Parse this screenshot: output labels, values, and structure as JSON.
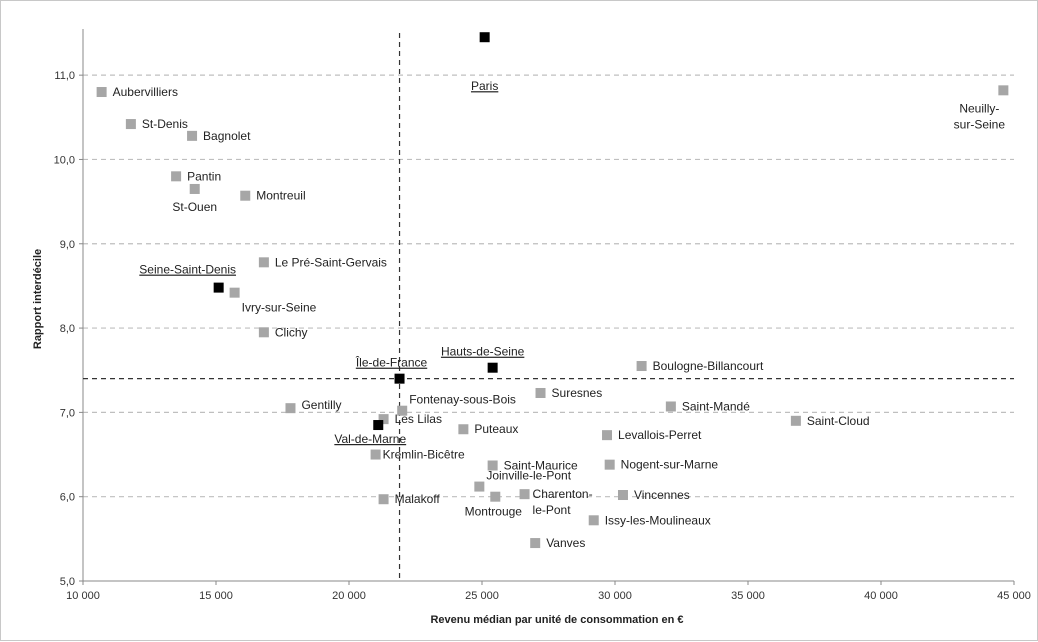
{
  "chart_data": {
    "type": "scatter",
    "xlabel": "Revenu médian par unité de consommation en €",
    "ylabel": "Rapport interdécile",
    "xlim": [
      10000,
      45000
    ],
    "ylim": [
      5.0,
      11.5
    ],
    "x_ticks": [
      "10 000",
      "15 000",
      "20 000",
      "25 000",
      "30 000",
      "35 000",
      "40 000",
      "45 000"
    ],
    "y_ticks": [
      "5,0",
      "6,0",
      "7,0",
      "8,0",
      "9,0",
      "10,0",
      "11,0"
    ],
    "x_tick_values": [
      10000,
      15000,
      20000,
      25000,
      30000,
      35000,
      40000,
      45000
    ],
    "y_tick_values": [
      5,
      6,
      7,
      8,
      9,
      10,
      11
    ],
    "grid": "horizontal dashed",
    "reference_lines": {
      "x": 21900,
      "y": 7.4
    },
    "colors": {
      "commune": "#a6a6a6",
      "aggregate": "#000000",
      "grid": "#bfbfbf",
      "ref_line": "#333333"
    },
    "series": [
      {
        "kind": "commune",
        "points": [
          {
            "label": "Aubervilliers",
            "x": 10700,
            "y": 10.8,
            "anchor": "right"
          },
          {
            "label": "St-Denis",
            "x": 11800,
            "y": 10.42,
            "anchor": "right"
          },
          {
            "label": "Bagnolet",
            "x": 14100,
            "y": 10.28,
            "anchor": "right"
          },
          {
            "label": "Pantin",
            "x": 13500,
            "y": 9.8,
            "anchor": "right"
          },
          {
            "label": "St-Ouen",
            "x": 14200,
            "y": 9.65,
            "anchor": "below"
          },
          {
            "label": "Montreuil",
            "x": 16100,
            "y": 9.57,
            "anchor": "right"
          },
          {
            "label": "Le Pré-Saint-Gervais",
            "x": 16800,
            "y": 8.78,
            "anchor": "right"
          },
          {
            "label": "Ivry-sur-Seine",
            "x": 15700,
            "y": 8.42,
            "anchor": "below-right"
          },
          {
            "label": "Clichy",
            "x": 16800,
            "y": 7.95,
            "anchor": "right"
          },
          {
            "label": "Boulogne-Billancourt",
            "x": 31000,
            "y": 7.55,
            "anchor": "right"
          },
          {
            "label": "Suresnes",
            "x": 27200,
            "y": 7.23,
            "anchor": "right"
          },
          {
            "label": "Fontenay-sous-Bois",
            "x": 22000,
            "y": 7.02,
            "anchor": "above-right"
          },
          {
            "label": "Gentilly",
            "x": 17800,
            "y": 7.05,
            "anchor": "right-up"
          },
          {
            "label": "Les Lilas",
            "x": 21300,
            "y": 6.92,
            "anchor": "right"
          },
          {
            "label": "Saint-Mandé",
            "x": 32100,
            "y": 7.07,
            "anchor": "right"
          },
          {
            "label": "Saint-Cloud",
            "x": 36800,
            "y": 6.9,
            "anchor": "right"
          },
          {
            "label": "Puteaux",
            "x": 24300,
            "y": 6.8,
            "anchor": "right"
          },
          {
            "label": "Levallois-Perret",
            "x": 29700,
            "y": 6.73,
            "anchor": "right"
          },
          {
            "label": "Kremlin-Bicêtre",
            "x": 21000,
            "y": 6.5,
            "anchor": "right"
          },
          {
            "label": "Saint-Maurice",
            "x": 25400,
            "y": 6.37,
            "anchor": "right"
          },
          {
            "label": "Nogent-sur-Marne",
            "x": 29800,
            "y": 6.38,
            "anchor": "right"
          },
          {
            "label": "Joinville-le-Pont",
            "x": 24900,
            "y": 6.12,
            "anchor": "above-right"
          },
          {
            "label": "Montrouge",
            "x": 25500,
            "y": 6.0,
            "anchor": "below-left"
          },
          {
            "label": "Charenton-\nle-Pont",
            "x": 26600,
            "y": 6.03,
            "anchor": "right-stack"
          },
          {
            "label": "Vincennes",
            "x": 30300,
            "y": 6.02,
            "anchor": "right"
          },
          {
            "label": "Malakoff",
            "x": 21300,
            "y": 5.97,
            "anchor": "right"
          },
          {
            "label": "Issy-les-Moulineaux",
            "x": 29200,
            "y": 5.72,
            "anchor": "right"
          },
          {
            "label": "Vanves",
            "x": 27000,
            "y": 5.45,
            "anchor": "right"
          },
          {
            "label": "Neuilly-\nsur-Seine",
            "x": 44600,
            "y": 10.82,
            "anchor": "below-left-stack"
          }
        ]
      },
      {
        "kind": "aggregate",
        "points": [
          {
            "label": "Paris",
            "x": 25100,
            "y": 11.45,
            "anchor": "below"
          },
          {
            "label": "Seine-Saint-Denis",
            "x": 15100,
            "y": 8.48,
            "anchor": "above-left"
          },
          {
            "label": "Hauts-de-Seine",
            "x": 25400,
            "y": 7.53,
            "anchor": "above-left"
          },
          {
            "label": "Île-de-France",
            "x": 21900,
            "y": 7.4,
            "anchor": "above-left"
          },
          {
            "label": "Val-de-Marne",
            "x": 21100,
            "y": 6.85,
            "anchor": "below-left"
          }
        ]
      }
    ]
  }
}
